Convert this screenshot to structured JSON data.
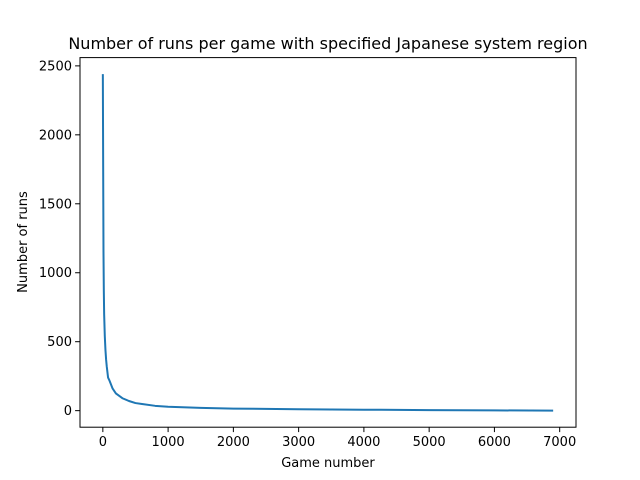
{
  "chart_data": {
    "type": "line",
    "title": "Number of runs per game with specified Japanese system region",
    "xlabel": "Game number",
    "ylabel": "Number of runs",
    "xlim": [
      -350,
      7250
    ],
    "ylim": [
      -120,
      2560
    ],
    "xticks": [
      0,
      1000,
      2000,
      3000,
      4000,
      5000,
      6000,
      7000
    ],
    "yticks": [
      0,
      500,
      1000,
      1500,
      2000,
      2500
    ],
    "grid": false,
    "legend": "none",
    "series": [
      {
        "color": "#1f77b4",
        "x": [
          0,
          5,
          10,
          15,
          20,
          30,
          40,
          50,
          60,
          80,
          100,
          150,
          200,
          300,
          400,
          500,
          600,
          800,
          1000,
          1500,
          2000,
          3000,
          4000,
          5000,
          6000,
          6900
        ],
        "y": [
          2440,
          1770,
          1150,
          870,
          700,
          540,
          440,
          370,
          320,
          240,
          220,
          160,
          125,
          90,
          70,
          55,
          48,
          35,
          28,
          20,
          15,
          10,
          7,
          4,
          2,
          0
        ]
      }
    ]
  }
}
